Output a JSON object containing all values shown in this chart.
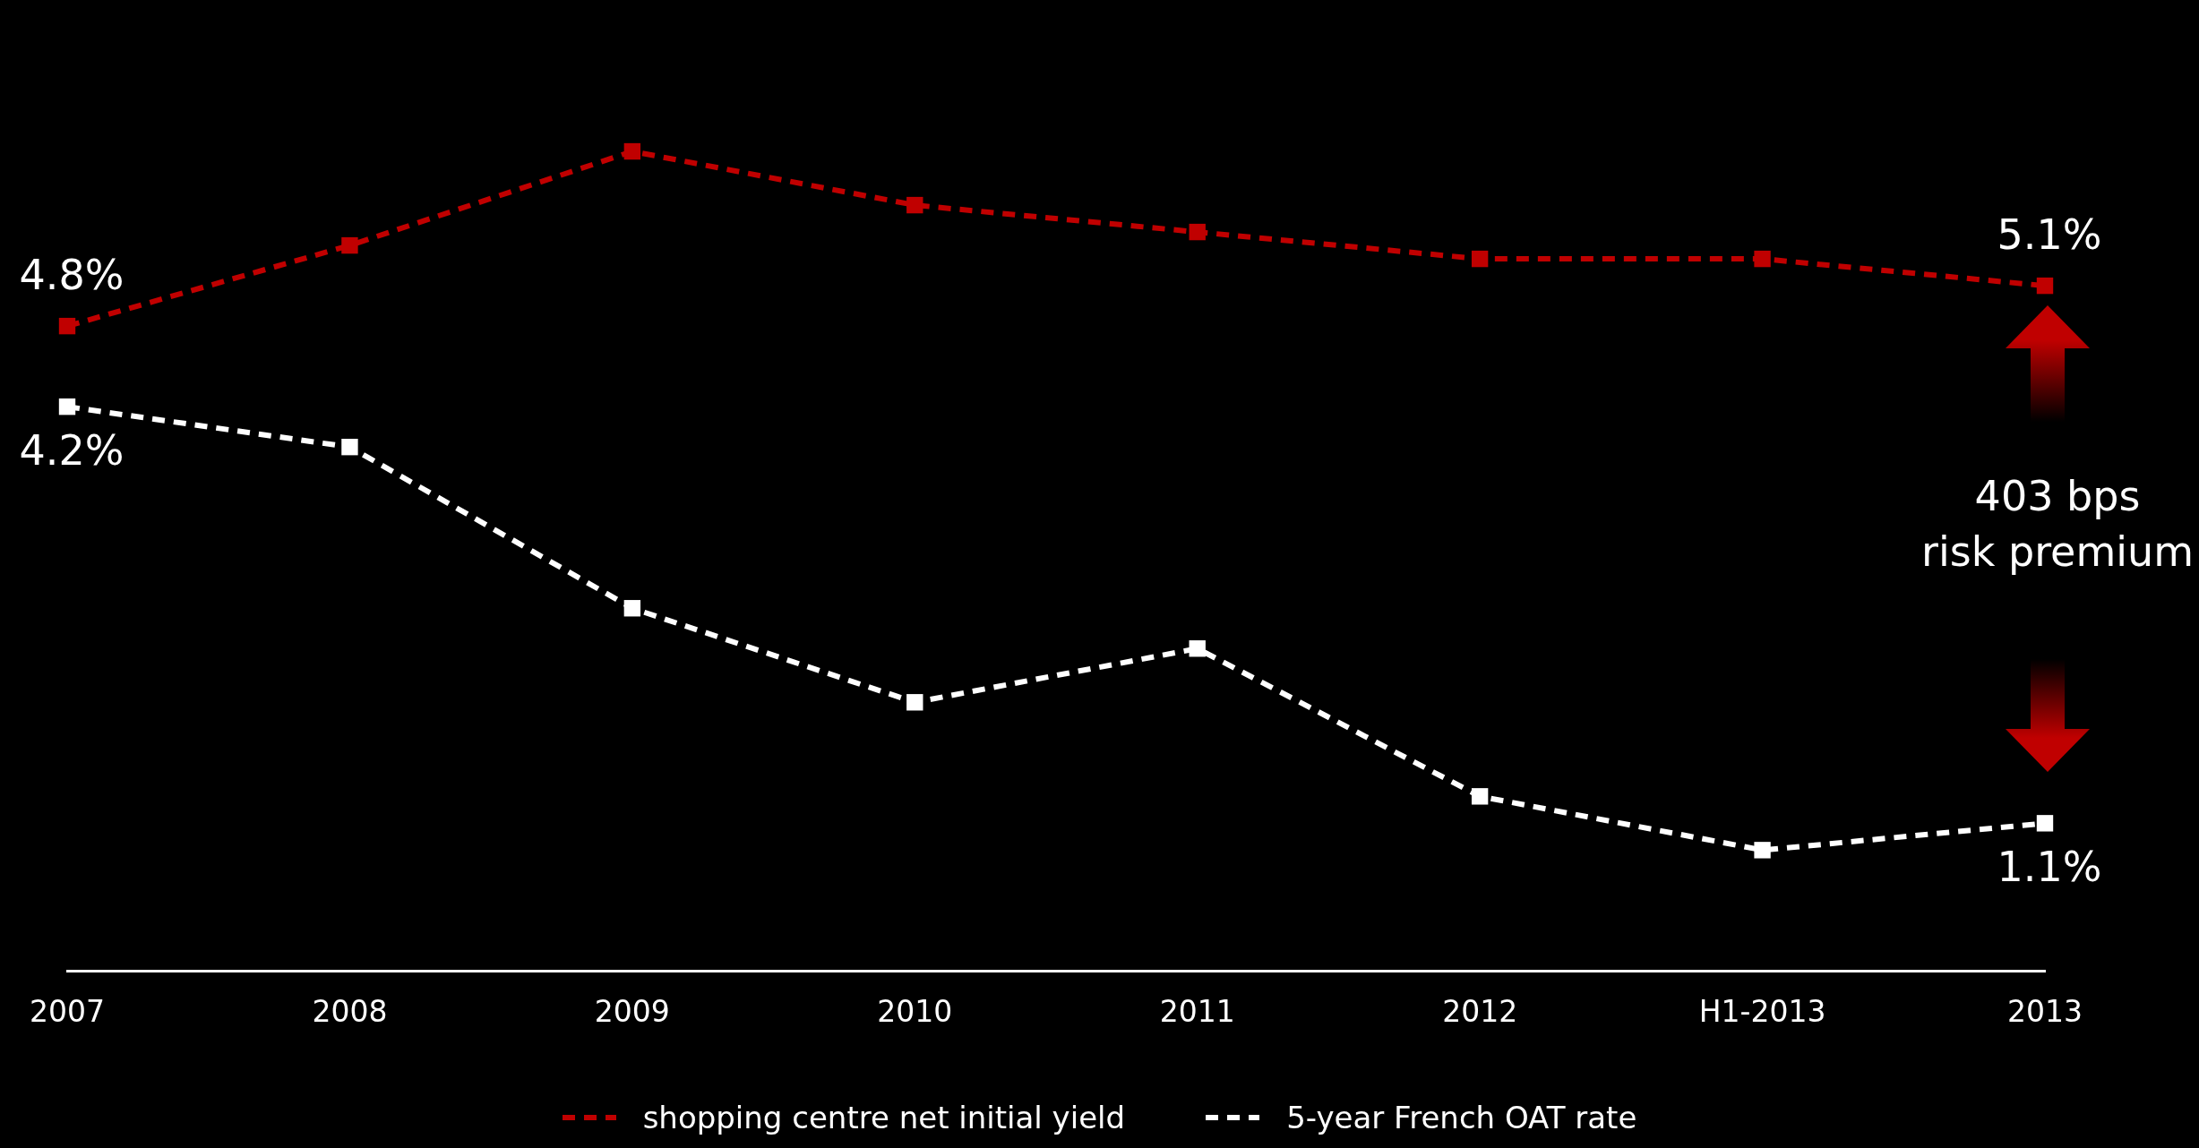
{
  "chart_data": {
    "type": "line",
    "categories": [
      "2007",
      "2008",
      "2009",
      "2010",
      "2011",
      "2012",
      "H1-2013",
      "2013"
    ],
    "series": [
      {
        "name": "shopping centre net initial yield",
        "color": "#c00000",
        "values": [
          4.8,
          5.4,
          6.1,
          5.7,
          5.5,
          5.3,
          5.3,
          5.1
        ],
        "value_labels": [
          "4.8%",
          null,
          null,
          null,
          null,
          null,
          null,
          "5.1%"
        ]
      },
      {
        "name": "5-year French OAT rate",
        "color": "#ffffff",
        "values": [
          4.2,
          3.9,
          2.7,
          2.0,
          2.4,
          1.3,
          0.9,
          1.1
        ],
        "value_labels": [
          "4.2%",
          null,
          null,
          null,
          null,
          null,
          null,
          "1.1%"
        ]
      }
    ],
    "tick_labels": "x",
    "grid": false,
    "legend": "bottom",
    "marker": "square",
    "line_style": "dashed",
    "annotations": [
      "403 bps\nrisk premium"
    ]
  }
}
